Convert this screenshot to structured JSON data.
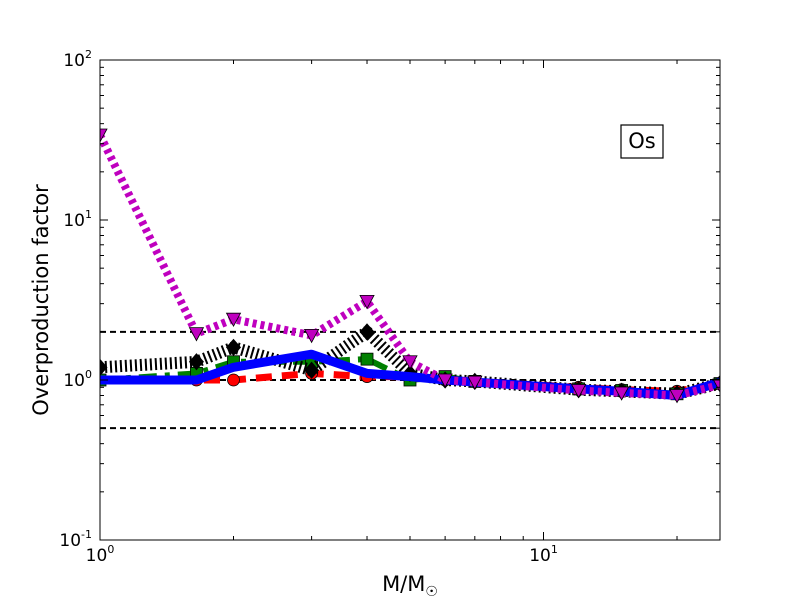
{
  "chart_data": {
    "type": "line",
    "xlabel": "M/M",
    "xlabel_sub": "☉",
    "ylabel": "Overproduction factor",
    "annotation": "Os",
    "x_scale": "log",
    "y_scale": "log",
    "xlim": [
      1,
      25
    ],
    "ylim": [
      0.1,
      100
    ],
    "x_ticks": [
      {
        "value": 1,
        "base": "10",
        "exp": "0"
      },
      {
        "value": 10,
        "base": "10",
        "exp": "1"
      }
    ],
    "y_ticks": [
      {
        "value": 0.1,
        "base": "10",
        "exp": "-1"
      },
      {
        "value": 1,
        "base": "10",
        "exp": "0"
      },
      {
        "value": 10,
        "base": "10",
        "exp": "1"
      },
      {
        "value": 100,
        "base": "10",
        "exp": "2"
      }
    ],
    "reference_lines": [
      2.0,
      1.0,
      0.5
    ],
    "grid": false,
    "series": [
      {
        "color": "#ff0000",
        "dash": "dashed",
        "marker": "circle",
        "x": [
          1,
          1.65,
          2,
          3,
          4,
          5,
          6,
          7,
          12,
          15,
          20,
          25
        ],
        "y": [
          1.0,
          1.0,
          1.0,
          1.1,
          1.05,
          1.05,
          1.0,
          0.98,
          0.9,
          0.87,
          0.85,
          0.95
        ]
      },
      {
        "color": "#008000",
        "dash": "dashdot",
        "marker": "square",
        "x": [
          1,
          1.65,
          2,
          3,
          4,
          5,
          6,
          7,
          12,
          15,
          20,
          25
        ],
        "y": [
          1.0,
          1.1,
          1.3,
          1.3,
          1.35,
          1.0,
          1.05,
          0.98,
          0.88,
          0.86,
          0.82,
          0.95
        ]
      },
      {
        "color": "#000000",
        "dash": "dotted",
        "marker": "diamond",
        "x": [
          1,
          1.65,
          2,
          3,
          4,
          5,
          6,
          7,
          12,
          15,
          20,
          25
        ],
        "y": [
          1.2,
          1.3,
          1.6,
          1.15,
          2.0,
          1.1,
          1.0,
          0.98,
          0.87,
          0.85,
          0.82,
          0.95
        ]
      },
      {
        "color": "#0000ff",
        "dash": "solid",
        "marker": "none",
        "x": [
          1,
          1.65,
          2,
          3,
          4,
          5,
          6,
          7,
          12,
          15,
          20,
          25
        ],
        "y": [
          1.0,
          1.0,
          1.2,
          1.45,
          1.1,
          1.05,
          1.0,
          0.97,
          0.88,
          0.85,
          0.8,
          0.97
        ]
      },
      {
        "color": "#bf00bf",
        "dash": "dotted",
        "marker": "triangle-down",
        "x": [
          1,
          1.65,
          2,
          3,
          4,
          5,
          6,
          7,
          12,
          15,
          20,
          25
        ],
        "y": [
          34,
          1.95,
          2.4,
          1.9,
          3.1,
          1.3,
          1.0,
          0.97,
          0.86,
          0.83,
          0.8,
          0.93
        ]
      }
    ]
  }
}
